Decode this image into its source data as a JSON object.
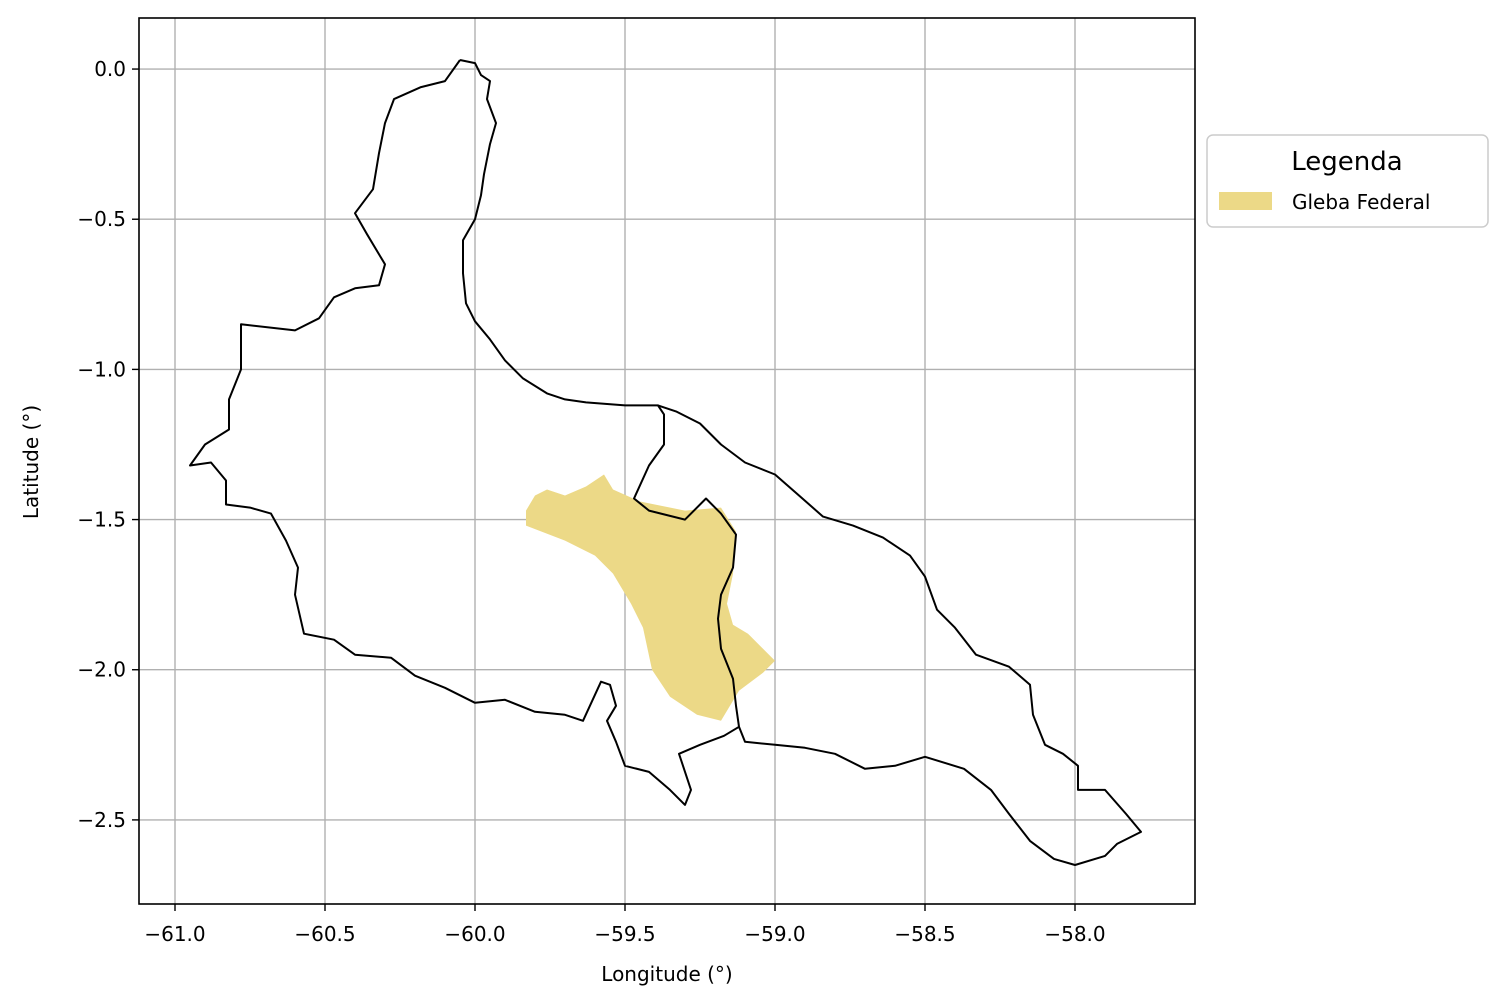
{
  "chart_data": {
    "type": "map",
    "xlabel": "Longitude (°)",
    "ylabel": "Latitude (°)",
    "xlim": [
      -61.12,
      -57.6
    ],
    "ylim": [
      -2.78,
      0.17
    ],
    "xticks": [
      -61.0,
      -60.5,
      -60.0,
      -59.5,
      -59.0,
      -58.5,
      -58.0
    ],
    "xtick_labels": [
      "−61.0",
      "−60.5",
      "−60.0",
      "−59.5",
      "−59.0",
      "−58.5",
      "−58.0"
    ],
    "yticks": [
      0.0,
      -0.5,
      -1.0,
      -1.5,
      -2.0,
      -2.5
    ],
    "ytick_labels": [
      "0.0",
      "−0.5",
      "−1.0",
      "−1.5",
      "−2.0",
      "−2.5"
    ],
    "grid": true,
    "legend": {
      "title": "Legenda",
      "placement": "outside-right",
      "entries": [
        {
          "label": "Gleba Federal",
          "color": "#ecd987"
        }
      ]
    },
    "layers": [
      {
        "kind": "outline",
        "stroke": "#000000",
        "coords": [
          [
            -60.05,
            0.03
          ],
          [
            -60.0,
            0.02
          ],
          [
            -59.98,
            -0.02
          ],
          [
            -59.95,
            -0.04
          ],
          [
            -59.96,
            -0.1
          ],
          [
            -59.93,
            -0.18
          ],
          [
            -59.95,
            -0.25
          ],
          [
            -59.97,
            -0.35
          ],
          [
            -59.98,
            -0.42
          ],
          [
            -60.0,
            -0.5
          ],
          [
            -60.04,
            -0.57
          ],
          [
            -60.04,
            -0.68
          ],
          [
            -60.03,
            -0.78
          ],
          [
            -60.0,
            -0.84
          ],
          [
            -59.95,
            -0.9
          ],
          [
            -59.9,
            -0.97
          ],
          [
            -59.84,
            -1.03
          ],
          [
            -59.76,
            -1.08
          ],
          [
            -59.7,
            -1.1
          ],
          [
            -59.63,
            -1.11
          ],
          [
            -59.5,
            -1.12
          ],
          [
            -59.39,
            -1.12
          ],
          [
            -59.37,
            -1.15
          ],
          [
            -59.37,
            -1.25
          ],
          [
            -59.42,
            -1.32
          ],
          [
            -59.47,
            -1.43
          ],
          [
            -59.42,
            -1.47
          ],
          [
            -59.3,
            -1.5
          ],
          [
            -59.23,
            -1.43
          ],
          [
            -59.18,
            -1.48
          ],
          [
            -59.13,
            -1.55
          ],
          [
            -59.14,
            -1.66
          ],
          [
            -59.18,
            -1.75
          ],
          [
            -59.19,
            -1.83
          ],
          [
            -59.18,
            -1.93
          ],
          [
            -59.14,
            -2.03
          ],
          [
            -59.13,
            -2.12
          ],
          [
            -59.12,
            -2.19
          ],
          [
            -59.17,
            -2.22
          ],
          [
            -59.25,
            -2.25
          ],
          [
            -59.32,
            -2.28
          ],
          [
            -59.28,
            -2.4
          ],
          [
            -59.3,
            -2.45
          ],
          [
            -59.35,
            -2.4
          ],
          [
            -59.42,
            -2.34
          ],
          [
            -59.5,
            -2.32
          ],
          [
            -59.53,
            -2.24
          ],
          [
            -59.56,
            -2.17
          ],
          [
            -59.53,
            -2.12
          ],
          [
            -59.55,
            -2.05
          ],
          [
            -59.58,
            -2.04
          ],
          [
            -59.64,
            -2.17
          ],
          [
            -59.7,
            -2.15
          ],
          [
            -59.8,
            -2.14
          ],
          [
            -59.9,
            -2.1
          ],
          [
            -60.0,
            -2.11
          ],
          [
            -60.1,
            -2.06
          ],
          [
            -60.2,
            -2.02
          ],
          [
            -60.28,
            -1.96
          ],
          [
            -60.4,
            -1.95
          ],
          [
            -60.47,
            -1.9
          ],
          [
            -60.57,
            -1.88
          ],
          [
            -60.6,
            -1.75
          ],
          [
            -60.59,
            -1.66
          ],
          [
            -60.63,
            -1.57
          ],
          [
            -60.68,
            -1.48
          ],
          [
            -60.75,
            -1.46
          ],
          [
            -60.83,
            -1.45
          ],
          [
            -60.83,
            -1.37
          ],
          [
            -60.88,
            -1.31
          ],
          [
            -60.95,
            -1.32
          ],
          [
            -60.9,
            -1.25
          ],
          [
            -60.82,
            -1.2
          ],
          [
            -60.82,
            -1.1
          ],
          [
            -60.78,
            -1.0
          ],
          [
            -60.78,
            -0.85
          ],
          [
            -60.6,
            -0.87
          ],
          [
            -60.52,
            -0.83
          ],
          [
            -60.47,
            -0.76
          ],
          [
            -60.4,
            -0.73
          ],
          [
            -60.32,
            -0.72
          ],
          [
            -60.3,
            -0.65
          ],
          [
            -60.36,
            -0.55
          ],
          [
            -60.4,
            -0.48
          ],
          [
            -60.34,
            -0.4
          ],
          [
            -60.32,
            -0.28
          ],
          [
            -60.3,
            -0.18
          ],
          [
            -60.27,
            -0.1
          ],
          [
            -60.18,
            -0.06
          ],
          [
            -60.1,
            -0.04
          ],
          [
            -60.05,
            0.03
          ]
        ]
      },
      {
        "kind": "outline",
        "stroke": "#000000",
        "coords": [
          [
            -59.39,
            -1.12
          ],
          [
            -59.33,
            -1.14
          ],
          [
            -59.25,
            -1.18
          ],
          [
            -59.18,
            -1.25
          ],
          [
            -59.1,
            -1.31
          ],
          [
            -59.0,
            -1.35
          ],
          [
            -58.92,
            -1.42
          ],
          [
            -58.84,
            -1.49
          ],
          [
            -58.74,
            -1.52
          ],
          [
            -58.64,
            -1.56
          ],
          [
            -58.55,
            -1.62
          ],
          [
            -58.5,
            -1.69
          ],
          [
            -58.46,
            -1.8
          ],
          [
            -58.4,
            -1.86
          ],
          [
            -58.33,
            -1.95
          ],
          [
            -58.22,
            -1.99
          ],
          [
            -58.15,
            -2.05
          ],
          [
            -58.14,
            -2.15
          ],
          [
            -58.1,
            -2.25
          ],
          [
            -58.04,
            -2.28
          ],
          [
            -57.99,
            -2.32
          ],
          [
            -57.99,
            -2.4
          ],
          [
            -57.9,
            -2.4
          ],
          [
            -57.83,
            -2.48
          ],
          [
            -57.78,
            -2.54
          ],
          [
            -57.86,
            -2.58
          ],
          [
            -57.9,
            -2.62
          ],
          [
            -58.0,
            -2.65
          ],
          [
            -58.07,
            -2.63
          ],
          [
            -58.15,
            -2.57
          ],
          [
            -58.22,
            -2.48
          ],
          [
            -58.28,
            -2.4
          ],
          [
            -58.37,
            -2.33
          ],
          [
            -58.5,
            -2.29
          ],
          [
            -58.6,
            -2.32
          ],
          [
            -58.7,
            -2.33
          ],
          [
            -58.8,
            -2.28
          ],
          [
            -58.9,
            -2.26
          ],
          [
            -59.0,
            -2.25
          ],
          [
            -59.1,
            -2.24
          ],
          [
            -59.12,
            -2.19
          ]
        ]
      },
      {
        "kind": "area",
        "fill": "#ecd987",
        "label": "Gleba Federal",
        "coords": [
          [
            -59.83,
            -1.47
          ],
          [
            -59.8,
            -1.42
          ],
          [
            -59.76,
            -1.4
          ],
          [
            -59.7,
            -1.42
          ],
          [
            -59.63,
            -1.39
          ],
          [
            -59.57,
            -1.35
          ],
          [
            -59.54,
            -1.4
          ],
          [
            -59.45,
            -1.44
          ],
          [
            -59.3,
            -1.47
          ],
          [
            -59.18,
            -1.46
          ],
          [
            -59.13,
            -1.54
          ],
          [
            -59.14,
            -1.68
          ],
          [
            -59.16,
            -1.78
          ],
          [
            -59.14,
            -1.85
          ],
          [
            -59.09,
            -1.88
          ],
          [
            -59.05,
            -1.92
          ],
          [
            -59.0,
            -1.97
          ],
          [
            -59.04,
            -2.01
          ],
          [
            -59.12,
            -2.07
          ],
          [
            -59.18,
            -2.17
          ],
          [
            -59.26,
            -2.15
          ],
          [
            -59.35,
            -2.09
          ],
          [
            -59.41,
            -2.0
          ],
          [
            -59.44,
            -1.86
          ],
          [
            -59.48,
            -1.78
          ],
          [
            -59.54,
            -1.68
          ],
          [
            -59.6,
            -1.62
          ],
          [
            -59.7,
            -1.57
          ],
          [
            -59.83,
            -1.52
          ],
          [
            -59.83,
            -1.47
          ]
        ]
      }
    ]
  }
}
